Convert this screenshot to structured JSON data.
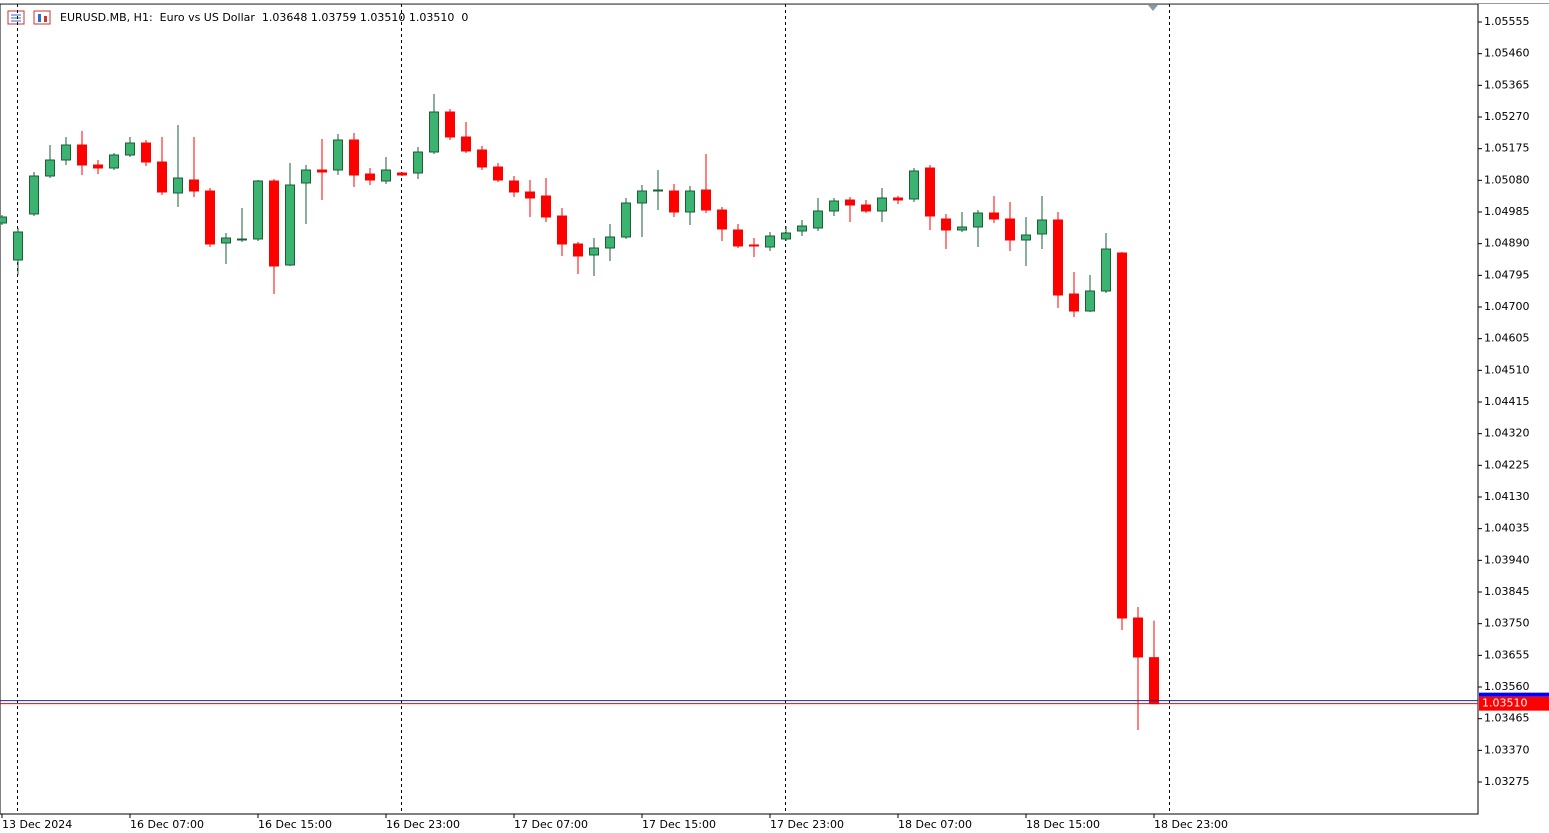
{
  "chart_data": {
    "type": "candlestick",
    "title": "EURUSD.MB, H1:  Euro vs US Dollar  1.03648 1.03759 1.03510 1.03510  0",
    "categories": [
      "13 Dec 2024",
      null,
      null,
      null,
      null,
      null,
      null,
      null,
      "16 Dec 07:00",
      null,
      null,
      null,
      null,
      null,
      null,
      null,
      "16 Dec 15:00",
      null,
      null,
      null,
      null,
      null,
      null,
      null,
      "16 Dec 23:00",
      null,
      null,
      null,
      null,
      null,
      null,
      null,
      "17 Dec 07:00",
      null,
      null,
      null,
      null,
      null,
      null,
      null,
      "17 Dec 15:00",
      null,
      null,
      null,
      null,
      null,
      null,
      null,
      "17 Dec 23:00",
      null,
      null,
      null,
      null,
      null,
      null,
      null,
      "18 Dec 07:00",
      null,
      null,
      null,
      null,
      null,
      null,
      null,
      "18 Dec 15:00",
      null,
      null,
      null,
      null,
      null,
      null,
      null,
      "18 Dec 23:00"
    ],
    "open": [
      1.04952,
      1.04841,
      1.04979,
      1.05093,
      1.05141,
      1.05186,
      1.05126,
      1.05117,
      1.05156,
      1.05192,
      1.05135,
      1.05042,
      1.05081,
      1.05048,
      1.04892,
      1.04901,
      1.04904,
      1.05078,
      1.04826,
      1.05072,
      1.05111,
      1.05111,
      1.05201,
      1.05099,
      1.05078,
      1.05102,
      1.05102,
      1.05165,
      1.05285,
      1.0521,
      1.05171,
      1.0512,
      1.05078,
      1.05045,
      1.05033,
      1.04973,
      1.04889,
      1.04856,
      1.04877,
      1.0491,
      1.05012,
      1.05048,
      1.05048,
      1.04985,
      1.05051,
      1.04991,
      1.04931,
      1.04886,
      1.0488,
      1.04904,
      1.04928,
      1.04937,
      1.04988,
      1.05021,
      1.05006,
      1.04988,
      1.05027,
      1.05024,
      1.05117,
      1.04964,
      1.04931,
      1.0494,
      1.04982,
      1.04964,
      1.04901,
      1.04919,
      1.04961,
      1.04739,
      1.04688,
      1.04748,
      1.04862,
      1.03767,
      1.03648
    ],
    "high": [
      1.04976,
      1.04937,
      1.05105,
      1.05186,
      1.0521,
      1.05228,
      1.05141,
      1.05162,
      1.0521,
      1.05201,
      1.0521,
      1.05246,
      1.0521,
      1.05057,
      1.04922,
      1.04997,
      1.05081,
      1.05084,
      1.05132,
      1.05126,
      1.05204,
      1.05219,
      1.05222,
      1.05117,
      1.0515,
      1.05105,
      1.0518,
      1.05339,
      1.05294,
      1.05255,
      1.05183,
      1.05132,
      1.05093,
      1.05081,
      1.05087,
      1.04997,
      1.04895,
      1.04907,
      1.04949,
      1.05027,
      1.05066,
      1.05111,
      1.05069,
      1.05063,
      1.05159,
      1.05,
      1.04949,
      1.04907,
      1.04925,
      1.04943,
      1.04961,
      1.05027,
      1.05027,
      1.0503,
      1.05021,
      1.05057,
      1.05033,
      1.05117,
      1.05126,
      1.04979,
      1.04985,
      1.04991,
      1.05033,
      1.05015,
      1.0497,
      1.05033,
      1.04985,
      1.04805,
      1.04796,
      1.04922,
      1.04865,
      1.038,
      1.03759
    ],
    "low": [
      1.04946,
      1.04796,
      1.04973,
      1.05087,
      1.05126,
      1.05096,
      1.05099,
      1.05111,
      1.0515,
      1.05123,
      1.05036,
      1.05,
      1.0503,
      1.0488,
      1.04829,
      1.04895,
      1.04898,
      1.04739,
      1.04823,
      1.04949,
      1.05021,
      1.05096,
      1.0506,
      1.05066,
      1.05069,
      1.05093,
      1.05084,
      1.05159,
      1.05201,
      1.05162,
      1.05111,
      1.05075,
      1.0503,
      1.0497,
      1.04955,
      1.04853,
      1.04799,
      1.04793,
      1.04838,
      1.04904,
      1.0491,
      1.04991,
      1.0497,
      1.04946,
      1.04982,
      1.04898,
      1.04877,
      1.0485,
      1.04868,
      1.04898,
      1.04913,
      1.04928,
      1.04973,
      1.04955,
      1.04982,
      1.04955,
      1.05009,
      1.05015,
      1.04931,
      1.04874,
      1.04925,
      1.0488,
      1.04952,
      1.04868,
      1.04823,
      1.04874,
      1.04697,
      1.0467,
      1.04685,
      1.04742,
      1.03731,
      1.03431,
      1.0351
    ],
    "close": [
      1.0497,
      1.04925,
      1.05093,
      1.05141,
      1.05186,
      1.05126,
      1.05117,
      1.05156,
      1.05192,
      1.05135,
      1.05045,
      1.05087,
      1.05048,
      1.04889,
      1.04907,
      1.04904,
      1.05078,
      1.04823,
      1.05066,
      1.05111,
      1.05105,
      1.05201,
      1.05096,
      1.05081,
      1.05111,
      1.05096,
      1.05165,
      1.05285,
      1.0521,
      1.05168,
      1.0512,
      1.05081,
      1.05045,
      1.05027,
      1.0497,
      1.04889,
      1.04853,
      1.04877,
      1.0491,
      1.05012,
      1.05048,
      1.05051,
      1.04985,
      1.05048,
      1.04991,
      1.04934,
      1.04883,
      1.04883,
      1.04913,
      1.04922,
      1.04943,
      1.04988,
      1.05018,
      1.05006,
      1.04988,
      1.05027,
      1.05021,
      1.05108,
      1.04973,
      1.04931,
      1.0494,
      1.04982,
      1.04964,
      1.04901,
      1.04916,
      1.04961,
      1.04736,
      1.04688,
      1.04748,
      1.04874,
      1.03767,
      1.0365,
      1.0351
    ],
    "up_color": "#3cb371",
    "down_color": "#ff0000",
    "ylim": [
      1.03179,
      1.05609
    ],
    "yticks": [
      {
        "value": 1.05555,
        "label": "1.05555"
      },
      {
        "value": 1.0546,
        "label": "1.05460"
      },
      {
        "value": 1.05365,
        "label": "1.05365"
      },
      {
        "value": 1.0527,
        "label": "1.05270"
      },
      {
        "value": 1.05175,
        "label": "1.05175"
      },
      {
        "value": 1.0508,
        "label": "1.05080"
      },
      {
        "value": 1.04985,
        "label": "1.04985"
      },
      {
        "value": 1.0489,
        "label": "1.04890"
      },
      {
        "value": 1.04795,
        "label": "1.04795"
      },
      {
        "value": 1.047,
        "label": "1.04700"
      },
      {
        "value": 1.04605,
        "label": "1.04605"
      },
      {
        "value": 1.0451,
        "label": "1.04510"
      },
      {
        "value": 1.04415,
        "label": "1.04415"
      },
      {
        "value": 1.0432,
        "label": "1.04320"
      },
      {
        "value": 1.04225,
        "label": "1.04225"
      },
      {
        "value": 1.0413,
        "label": "1.04130"
      },
      {
        "value": 1.04035,
        "label": "1.04035"
      },
      {
        "value": 1.0394,
        "label": "1.03940"
      },
      {
        "value": 1.03845,
        "label": "1.03845"
      },
      {
        "value": 1.0375,
        "label": "1.03750"
      },
      {
        "value": 1.03655,
        "label": "1.03655"
      },
      {
        "value": 1.0356,
        "label": "1.03560"
      },
      {
        "value": 1.03465,
        "label": "1.03465"
      },
      {
        "value": 1.0337,
        "label": "1.03370"
      },
      {
        "value": 1.03275,
        "label": "1.03275"
      }
    ],
    "price_line": {
      "value": 1.0351,
      "label": "1.03510",
      "color": "#ff0000"
    }
  }
}
